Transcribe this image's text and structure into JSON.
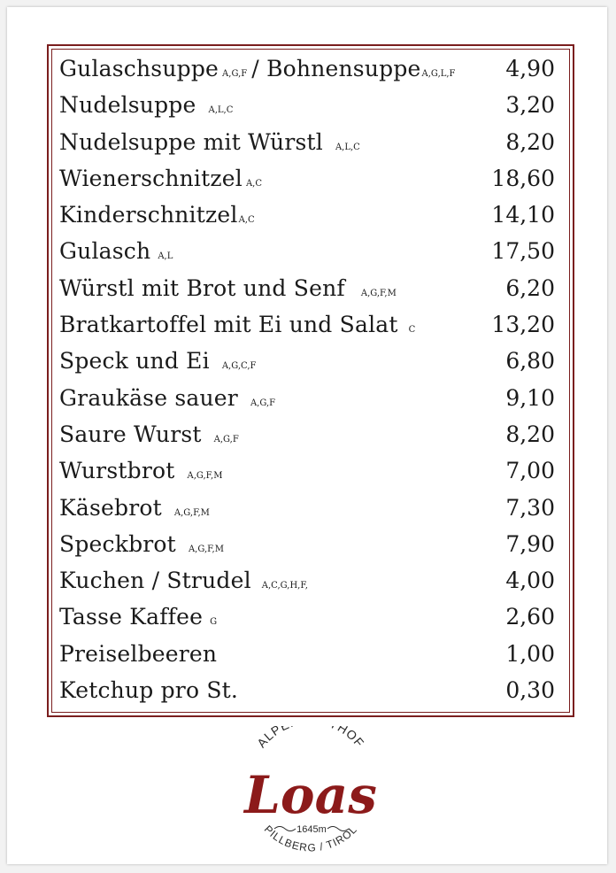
{
  "menu": {
    "items": [
      {
        "name": "Gulaschsuppe",
        "allergens": "A,G,F",
        "name2": "/ Bohnensuppe",
        "allergens2": "A,G,L,F",
        "price": "4,90"
      },
      {
        "name": "Nudelsuppe",
        "allergens": "A,L,C",
        "price": "3,20"
      },
      {
        "name": "Nudelsuppe mit Würstl",
        "allergens": "A,L,C",
        "price": "8,20"
      },
      {
        "name": "Wienerschnitzel",
        "allergens": "A,C",
        "price": "18,60"
      },
      {
        "name": "Kinderschnitzel",
        "allergens": "A,C",
        "price": "14,10"
      },
      {
        "name": "Gulasch",
        "allergens": "A,L",
        "price": "17,50"
      },
      {
        "name": "Würstl mit Brot und Senf",
        "allergens": "A,G,F,M",
        "price": "6,20"
      },
      {
        "name": "Bratkartoffel mit Ei und Salat",
        "allergens": "C",
        "price": "13,20"
      },
      {
        "name": "Speck und Ei",
        "allergens": "A,G,C,F",
        "price": "6,80"
      },
      {
        "name": "Graukäse sauer",
        "allergens": "A,G,F",
        "price": "9,10"
      },
      {
        "name": "Saure Wurst",
        "allergens": "A,G,F",
        "price": "8,20"
      },
      {
        "name": "Wurstbrot",
        "allergens": "A,G,F,M",
        "price": "7,00"
      },
      {
        "name": "Käsebrot",
        "allergens": "A,G,F,M",
        "price": "7,30"
      },
      {
        "name": "Speckbrot",
        "allergens": "A,G,F,M",
        "price": "7,90"
      },
      {
        "name": "Kuchen / Strudel",
        "allergens": "A,C,G,H,F,",
        "price": "4,00"
      },
      {
        "name": "Tasse Kaffee",
        "allergens": "G",
        "price": "2,60"
      },
      {
        "name": "Preiselbeeren",
        "allergens": "",
        "price": "1,00"
      },
      {
        "name": "Ketchup pro St.",
        "allergens": "",
        "price": "0,30"
      }
    ]
  },
  "logo": {
    "top_text": "ALPENGASTHOF",
    "name": "Loas",
    "altitude": "1645m",
    "bottom_text": "PILLBERG / TIROL"
  },
  "colors": {
    "frame": "#7a1e1e",
    "logo_red": "#8c1a1a",
    "logo_text": "#2a2a2a"
  }
}
